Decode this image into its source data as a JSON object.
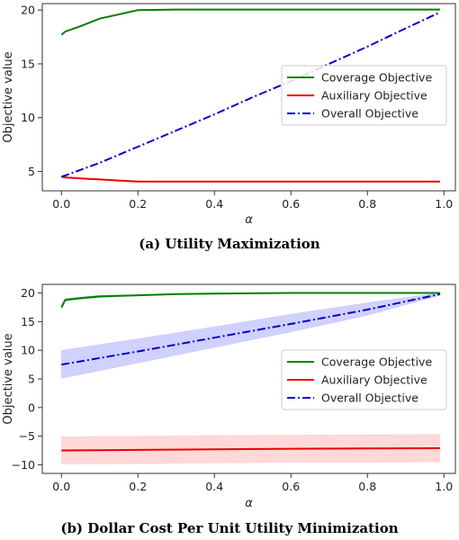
{
  "chart_data": [
    {
      "type": "line",
      "caption": "(a) Utility Maximization",
      "xlabel": "α",
      "ylabel": "Objective value",
      "xlim": [
        -0.05,
        1.03
      ],
      "ylim": [
        3.2,
        20.6
      ],
      "xticks": [
        0.0,
        0.2,
        0.4,
        0.6,
        0.8,
        1.0
      ],
      "xtick_labels": [
        "0.0",
        "0.2",
        "0.4",
        "0.6",
        "0.8",
        "1.0"
      ],
      "yticks": [
        5,
        10,
        15,
        20
      ],
      "ytick_labels": [
        "5",
        "10",
        "15",
        "20"
      ],
      "legend_position": "center-right",
      "series": [
        {
          "name": "Coverage Objective",
          "color": "#008000",
          "style": "solid",
          "x": [
            0.0,
            0.01,
            0.05,
            0.1,
            0.15,
            0.2,
            0.3,
            0.4,
            0.5,
            0.6,
            0.7,
            0.8,
            0.9,
            0.99
          ],
          "y": [
            17.7,
            18.0,
            18.5,
            19.2,
            19.6,
            20.0,
            20.05,
            20.05,
            20.05,
            20.05,
            20.05,
            20.05,
            20.05,
            20.05
          ]
        },
        {
          "name": "Auxiliary Objective",
          "color": "#ee0000",
          "style": "solid",
          "x": [
            0.0,
            0.01,
            0.05,
            0.1,
            0.15,
            0.2,
            0.3,
            0.4,
            0.5,
            0.6,
            0.7,
            0.8,
            0.9,
            0.99
          ],
          "y": [
            4.5,
            4.45,
            4.35,
            4.25,
            4.15,
            4.05,
            4.05,
            4.05,
            4.05,
            4.05,
            4.05,
            4.05,
            4.05,
            4.05
          ]
        },
        {
          "name": "Overall Objective",
          "color": "#0000cc",
          "style": "dashdot",
          "x": [
            0.0,
            0.1,
            0.2,
            0.3,
            0.4,
            0.5,
            0.6,
            0.7,
            0.8,
            0.9,
            0.99
          ],
          "y": [
            4.5,
            5.8,
            7.3,
            8.8,
            10.3,
            11.9,
            13.4,
            15.0,
            16.6,
            18.3,
            19.8
          ]
        }
      ]
    },
    {
      "type": "line",
      "caption": "(b) Dollar Cost Per Unit Utility Minimization",
      "xlabel": "α",
      "ylabel": "Objective value",
      "xlim": [
        -0.05,
        1.03
      ],
      "ylim": [
        -11.5,
        21.5
      ],
      "xticks": [
        0.0,
        0.2,
        0.4,
        0.6,
        0.8,
        1.0
      ],
      "xtick_labels": [
        "0.0",
        "0.2",
        "0.4",
        "0.6",
        "0.8",
        "1.0"
      ],
      "yticks": [
        -10,
        -5,
        0,
        5,
        10,
        15,
        20
      ],
      "ytick_labels": [
        "−10",
        "−5",
        "0",
        "5",
        "10",
        "15",
        "20"
      ],
      "legend_position": "center-right",
      "series": [
        {
          "name": "Coverage Objective",
          "color": "#008000",
          "style": "solid",
          "x": [
            0.0,
            0.01,
            0.05,
            0.1,
            0.2,
            0.3,
            0.4,
            0.5,
            0.6,
            0.7,
            0.8,
            0.9,
            0.99
          ],
          "y": [
            17.5,
            18.8,
            19.1,
            19.4,
            19.6,
            19.8,
            19.9,
            19.95,
            20.0,
            20.0,
            20.0,
            20.0,
            20.0
          ],
          "band_lower": [
            17.2,
            18.6,
            18.9,
            19.2,
            19.5,
            19.7,
            19.8,
            19.9,
            19.95,
            19.95,
            19.95,
            19.95,
            19.95
          ],
          "band_upper": [
            17.8,
            19.0,
            19.3,
            19.6,
            19.7,
            19.9,
            20.0,
            20.0,
            20.05,
            20.05,
            20.05,
            20.05,
            20.05
          ],
          "band_color": "#008000"
        },
        {
          "name": "Auxiliary Objective",
          "color": "#ee0000",
          "style": "solid",
          "x": [
            0.0,
            0.2,
            0.4,
            0.6,
            0.8,
            0.99
          ],
          "y": [
            -7.5,
            -7.4,
            -7.3,
            -7.2,
            -7.15,
            -7.1
          ],
          "band_lower": [
            -9.9,
            -9.8,
            -9.7,
            -9.6,
            -9.55,
            -9.5
          ],
          "band_upper": [
            -5.1,
            -5.0,
            -4.9,
            -4.8,
            -4.75,
            -4.7
          ],
          "band_color": "#ff8080"
        },
        {
          "name": "Overall Objective",
          "color": "#0000cc",
          "style": "dashdot",
          "x": [
            0.0,
            0.2,
            0.4,
            0.6,
            0.8,
            0.99
          ],
          "y": [
            7.5,
            9.8,
            12.2,
            14.6,
            17.1,
            19.8
          ],
          "band_lower": [
            5.1,
            7.8,
            10.5,
            13.2,
            16.1,
            19.6
          ],
          "band_upper": [
            10.0,
            12.0,
            14.1,
            16.3,
            18.3,
            20.0
          ],
          "band_color": "#6666ff"
        }
      ]
    }
  ]
}
